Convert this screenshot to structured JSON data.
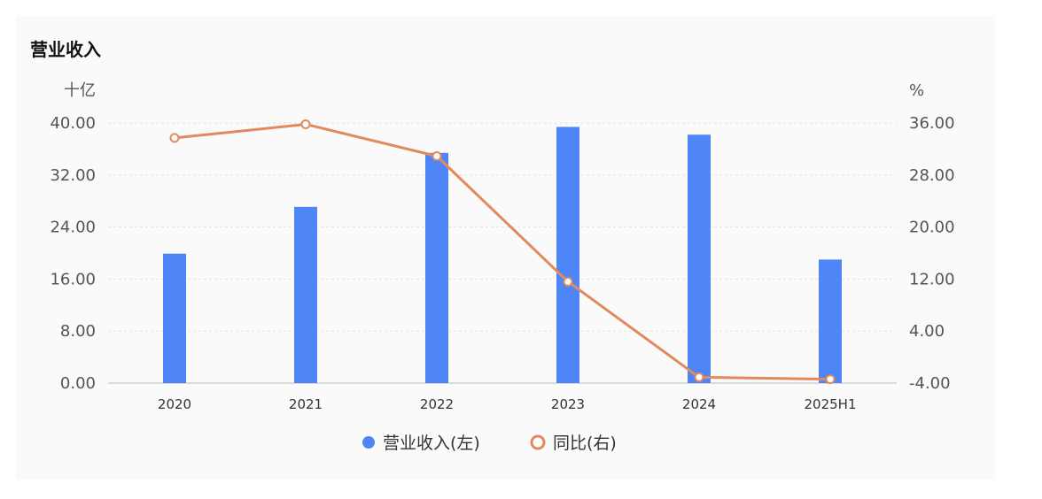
{
  "title": "营业收入",
  "chart_data": {
    "type": "bar+line",
    "title": "营业收入",
    "categories": [
      "2020",
      "2021",
      "2022",
      "2023",
      "2024",
      "2025H1"
    ],
    "series": [
      {
        "name": "营业收入(左)",
        "type": "bar",
        "axis": "left",
        "color": "#4f86f7",
        "values": [
          19.9,
          27.1,
          35.4,
          39.4,
          38.2,
          19.0
        ]
      },
      {
        "name": "同比(右)",
        "type": "line",
        "axis": "right",
        "color": "#e08a5e",
        "values": [
          33.7,
          35.8,
          30.9,
          11.6,
          -3.1,
          -3.4
        ]
      }
    ],
    "left_axis": {
      "unit": "十亿",
      "ylim": [
        0,
        40
      ],
      "ticks": [
        "0.00",
        "8.00",
        "16.00",
        "24.00",
        "32.00",
        "40.00"
      ]
    },
    "right_axis": {
      "unit": "%",
      "ylim": [
        -4,
        36
      ],
      "ticks": [
        "-4.00",
        "4.00",
        "12.00",
        "20.00",
        "28.00",
        "36.00"
      ]
    },
    "grid": true,
    "legend_position": "bottom-center"
  }
}
